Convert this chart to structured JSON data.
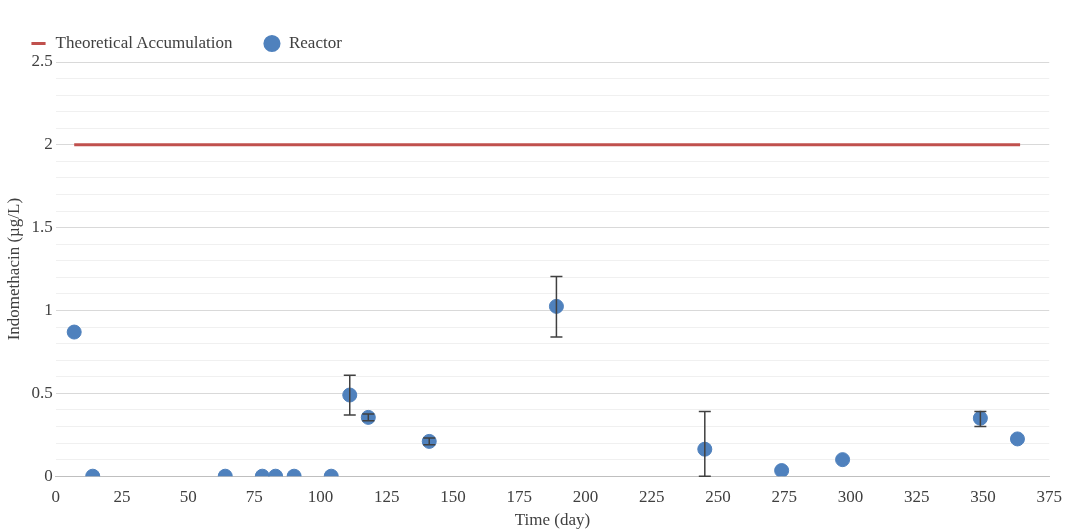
{
  "chart_data": {
    "type": "scatter",
    "xlabel": "Time (day)",
    "ylabel": "Indomethacin (µg/L)",
    "xlim": [
      0,
      375
    ],
    "xticks": [
      0,
      25,
      50,
      75,
      100,
      125,
      150,
      175,
      200,
      225,
      250,
      275,
      300,
      325,
      350,
      375
    ],
    "ylim": [
      0,
      2.5
    ],
    "yticks": [
      0,
      {
        "value": 0.1,
        "label": null
      },
      {
        "value": 0.2,
        "label": null
      },
      {
        "value": 0.3,
        "label": null
      },
      {
        "value": 0.4,
        "label": null
      },
      0.5,
      {
        "value": 0.6,
        "label": null
      },
      {
        "value": 0.7,
        "label": null
      },
      {
        "value": 0.8,
        "label": null
      },
      {
        "value": 0.9,
        "label": null
      },
      1,
      {
        "value": 1.1,
        "label": null
      },
      {
        "value": 1.2,
        "label": null
      },
      {
        "value": 1.3,
        "label": null
      },
      {
        "value": 1.4,
        "label": null
      },
      1.5,
      {
        "value": 1.6,
        "label": null
      },
      {
        "value": 1.7,
        "label": null
      },
      {
        "value": 1.8,
        "label": null
      },
      {
        "value": 1.9,
        "label": null
      },
      2,
      {
        "value": 2.1,
        "label": null
      },
      {
        "value": 2.2,
        "label": null
      },
      {
        "value": 2.3,
        "label": null
      },
      {
        "value": 2.4,
        "label": null
      },
      2.5
    ],
    "grid": "y",
    "legend": "top left",
    "marker": "circle",
    "series": [
      {
        "name": "Theoretical Accumulation",
        "type": "line",
        "color": "#c0504d",
        "x": [
          7,
          364
        ],
        "values": [
          2,
          2
        ],
        "line_style": "solid",
        "marker": "none"
      },
      {
        "name": "Reactor",
        "color": "#4f81bd",
        "x": [
          7,
          14,
          64,
          78,
          83,
          90,
          104,
          111,
          118,
          141,
          189,
          245,
          274,
          297,
          349,
          363
        ],
        "values": [
          0.87,
          0,
          0,
          0,
          0,
          0,
          0,
          0.49,
          0.355,
          0.21,
          1.025,
          0.163,
          0.034,
          0.1,
          0.35,
          0.225
        ],
        "errors": [
          null,
          null,
          null,
          null,
          null,
          null,
          null,
          [
            0.37,
            0.61
          ],
          [
            0.335,
            0.375
          ],
          [
            0.19,
            0.23
          ],
          [
            0.84,
            1.205
          ],
          [
            0,
            0.39
          ],
          null,
          null,
          [
            0.3,
            0.39
          ],
          null
        ]
      }
    ]
  }
}
